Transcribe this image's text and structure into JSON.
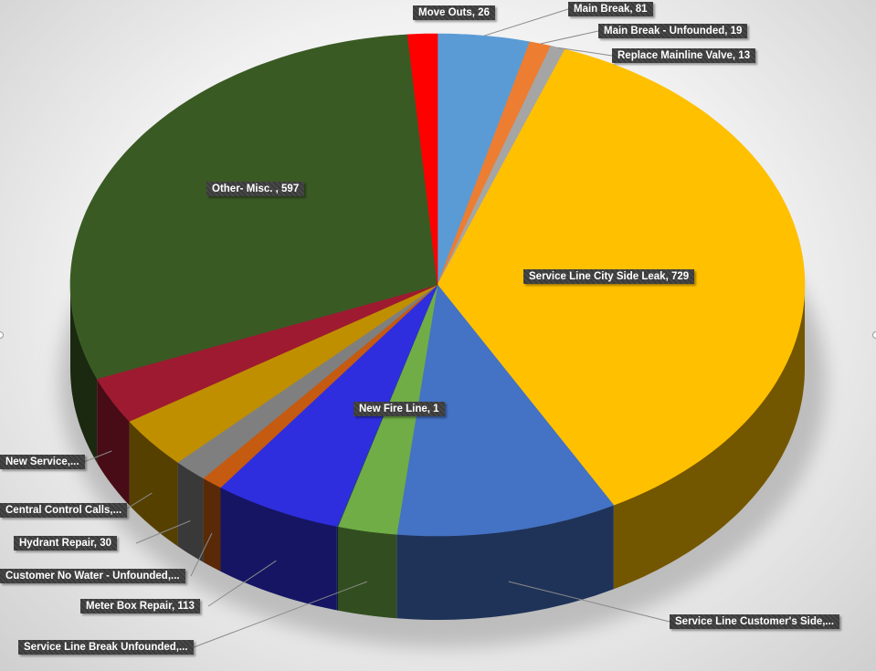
{
  "chart_data": {
    "type": "pie",
    "style": "3d",
    "slices": [
      {
        "label": "Main Break, 81",
        "category": "Main Break",
        "value": 81,
        "color": "#5B9BD5"
      },
      {
        "label": "Main Break - Unfounded, 19",
        "category": "Main Break - Unfounded",
        "value": 19,
        "color": "#ED7D31"
      },
      {
        "label": "Replace Mainline Valve, 13",
        "category": "Replace Mainline Valve",
        "value": 13,
        "color": "#A5A5A5"
      },
      {
        "label": "Service Line City Side Leak, 729",
        "category": "Service Line City Side Leak",
        "value": 729,
        "color": "#FFC000"
      },
      {
        "label": "Service Line Customer's Side,...",
        "category": "Service Line Customer's Side",
        "value": 195,
        "color": "#4472C4"
      },
      {
        "label": "Service Line Break Unfounded,...",
        "category": "Service Line Break Unfounded",
        "value": 52,
        "color": "#70AD47"
      },
      {
        "label": "New Fire Line, 1",
        "category": "New Fire Line",
        "value": 1,
        "color": "#264478"
      },
      {
        "label": "Meter Box Repair, 113",
        "category": "Meter Box Repair",
        "value": 113,
        "color": "#2E2EDE"
      },
      {
        "label": "Customer No Water - Unfounded,...",
        "category": "Customer No Water - Unfounded",
        "value": 19,
        "color": "#C55A11"
      },
      {
        "label": "Hydrant Repair, 30",
        "category": "Hydrant Repair",
        "value": 30,
        "color": "#7F7F7F"
      },
      {
        "label": "Central Control Calls,...",
        "category": "Central Control Calls",
        "value": 67,
        "color": "#BF8F00"
      },
      {
        "label": "New Service,...",
        "category": "New Service",
        "value": 61,
        "color": "#9E1A30"
      },
      {
        "label": "Other- Misc. , 597",
        "category": "Other- Misc.",
        "value": 597,
        "color": "#3A5A24"
      },
      {
        "label": "Move Outs, 26",
        "category": "Move Outs",
        "value": 26,
        "color": "#FF0000"
      }
    ]
  }
}
